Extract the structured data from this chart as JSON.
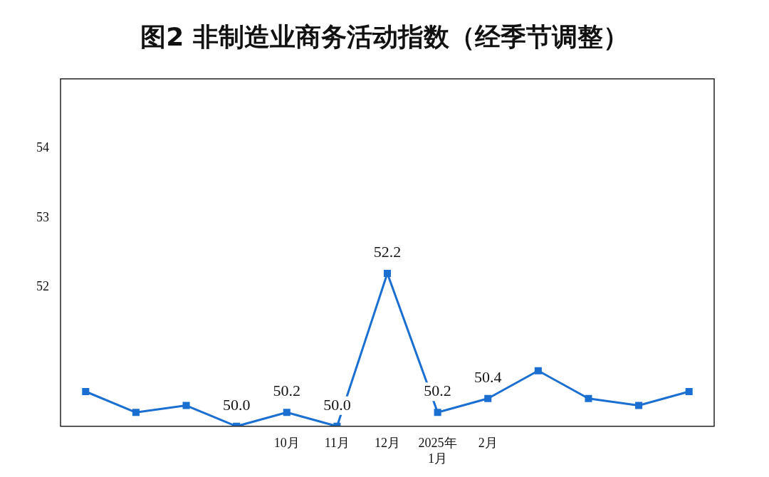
{
  "chart_data": {
    "type": "line",
    "title": "图2  非制造业商务活动指数（经季节调整）",
    "categories": [
      null,
      null,
      null,
      null,
      "10月",
      "11月",
      "12月",
      "2025年\n1月",
      "2月",
      null,
      null,
      null,
      null
    ],
    "series": [
      {
        "color": "#1a6fd0",
        "values": [
          50.5,
          50.2,
          50.3,
          50.0,
          50.2,
          50.0,
          52.2,
          50.2,
          50.4,
          50.8,
          50.4,
          50.3,
          50.5
        ],
        "value_labels": [
          null,
          null,
          null,
          "50.0",
          "50.2",
          "50.0",
          "52.2",
          "50.2",
          "50.4",
          null,
          null,
          null,
          null
        ]
      }
    ],
    "ylim": [
      50,
      55
    ],
    "yticks": [
      52,
      53,
      54
    ],
    "grid": false,
    "legend": false,
    "marker": "square",
    "line_style": "solid"
  }
}
